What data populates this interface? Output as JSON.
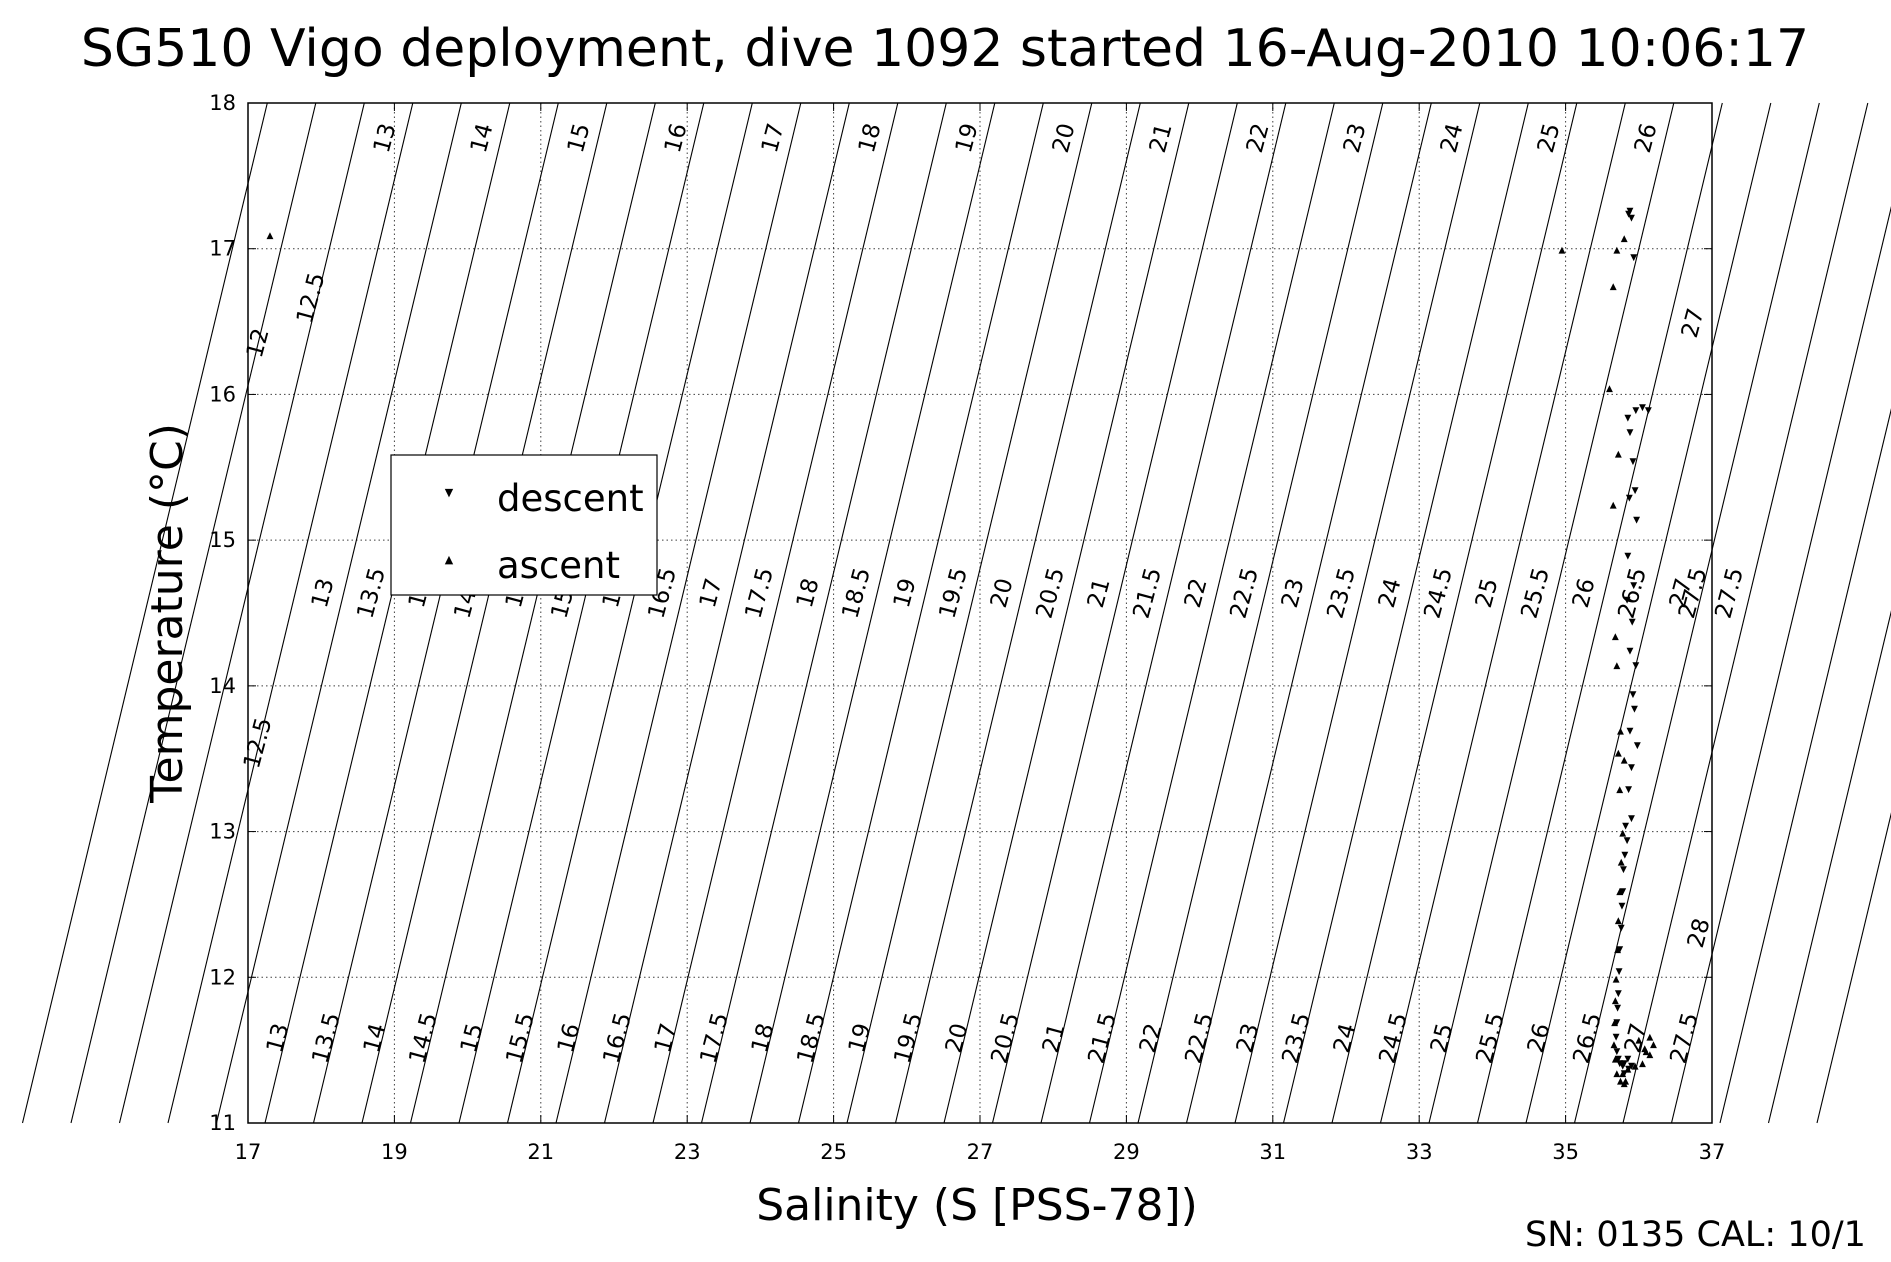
{
  "chart_data": {
    "type": "scatter",
    "title": "SG510 Vigo deployment, dive 1092 started 16-Aug-2010 10:06:17",
    "xlabel": "Salinity (S [PSS-78])",
    "ylabel": "Temperature (°C)",
    "xlim": [
      17,
      37
    ],
    "ylim": [
      11,
      18
    ],
    "xticks": [
      "17",
      "19",
      "21",
      "23",
      "25",
      "27",
      "29",
      "31",
      "33",
      "35",
      "37"
    ],
    "yticks": [
      "11",
      "12",
      "13",
      "14",
      "15",
      "16",
      "17",
      "18"
    ],
    "grid": true,
    "legend": {
      "position": "upper-left",
      "entries": [
        "descent",
        "ascent"
      ]
    },
    "footer": "SN: 0135  CAL: 10/1",
    "density_contours": {
      "top_labels": [
        "13",
        "14",
        "15",
        "16",
        "17",
        "18",
        "19",
        "20",
        "21",
        "22",
        "23",
        "24",
        "25",
        "26"
      ],
      "left_labels": [
        "12",
        "12.5"
      ],
      "right_labels": [
        "27",
        "27.5",
        "28"
      ],
      "middle_labels": [
        "13",
        "13.5",
        "14",
        "14.5",
        "15",
        "15.5",
        "16",
        "16.5",
        "17",
        "17.5",
        "18",
        "18.5",
        "19",
        "19.5",
        "20",
        "20.5",
        "21",
        "21.5",
        "22",
        "22.5",
        "23",
        "23.5",
        "24",
        "24.5",
        "25",
        "25.5",
        "26",
        "26.5",
        "27",
        "27.5"
      ],
      "bottom_labels": [
        "13",
        "13.5",
        "14",
        "14.5",
        "15",
        "15.5",
        "16",
        "16.5",
        "17",
        "17.5",
        "18",
        "18.5",
        "19",
        "19.5",
        "20",
        "20.5",
        "21",
        "21.5",
        "22",
        "22.5",
        "23",
        "23.5",
        "24",
        "24.5",
        "25",
        "25.5",
        "26",
        "26.5",
        "27",
        "27.5"
      ],
      "lower_left_label": "12.5"
    },
    "series": [
      {
        "name": "descent",
        "color": "#0000ff",
        "x": [
          35.86,
          35.9,
          35.88,
          35.93,
          35.85,
          35.96,
          36.05,
          36.13,
          35.88,
          35.92,
          35.95,
          35.87,
          35.97,
          35.85,
          35.93,
          35.84,
          35.91,
          35.88,
          35.96,
          35.92,
          35.94,
          35.88,
          35.98,
          35.9,
          35.86,
          35.9,
          35.82,
          35.84,
          35.81,
          35.79,
          35.78,
          35.77,
          35.76,
          35.74,
          35.73,
          35.72,
          35.71,
          35.7,
          35.69,
          35.7,
          35.72,
          35.74,
          35.78,
          35.8,
          35.85,
          35.9,
          35.86,
          35.8
        ],
        "y": [
          17.25,
          17.22,
          17.27,
          16.95,
          15.85,
          15.9,
          15.92,
          15.9,
          15.75,
          15.55,
          15.35,
          15.3,
          15.15,
          14.9,
          14.7,
          14.6,
          14.45,
          14.25,
          14.15,
          13.95,
          13.85,
          13.7,
          13.6,
          13.45,
          13.3,
          13.1,
          13.05,
          12.95,
          12.85,
          12.75,
          12.6,
          12.5,
          12.35,
          12.2,
          12.05,
          11.9,
          11.8,
          11.7,
          11.6,
          11.5,
          11.45,
          11.42,
          11.4,
          11.42,
          11.45,
          11.4,
          11.38,
          11.35
        ]
      },
      {
        "name": "ascent",
        "color": "#ff0000",
        "x": [
          17.3,
          34.95,
          35.8,
          35.7,
          35.65,
          35.6,
          35.72,
          35.65,
          35.68,
          35.7,
          35.75,
          35.72,
          35.8,
          35.74,
          35.78,
          35.76,
          35.74,
          35.72,
          35.71,
          35.69,
          35.68,
          35.67,
          35.66,
          35.68,
          35.7,
          35.75,
          35.8,
          35.82,
          35.78,
          35.85,
          35.95,
          36.05,
          36.1,
          36.15,
          36.2,
          36.15,
          36.08,
          36.0
        ],
        "y": [
          17.1,
          17.0,
          17.08,
          17.0,
          16.75,
          16.05,
          15.6,
          15.25,
          14.35,
          14.15,
          13.7,
          13.55,
          13.5,
          13.3,
          13.0,
          12.8,
          12.6,
          12.4,
          12.2,
          12.0,
          11.85,
          11.7,
          11.55,
          11.45,
          11.35,
          11.3,
          11.28,
          11.3,
          11.35,
          11.38,
          11.4,
          11.42,
          11.5,
          11.6,
          11.55,
          11.48,
          11.52,
          11.58
        ]
      }
    ]
  }
}
